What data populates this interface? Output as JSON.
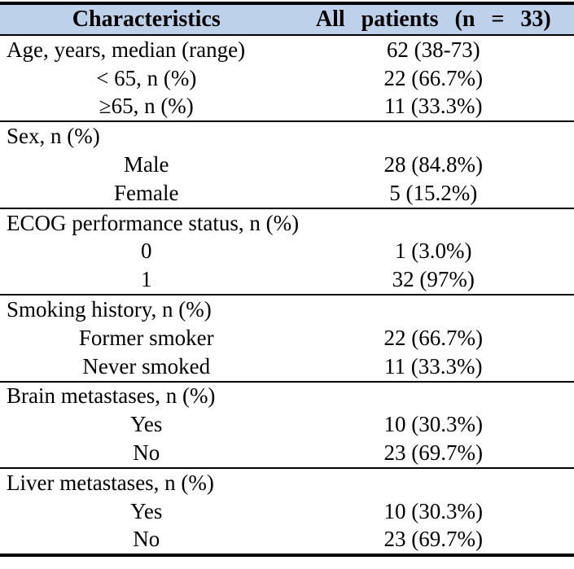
{
  "table": {
    "header": {
      "col1": "Characteristics",
      "col2": "All patients (n = 33)"
    },
    "header_bg": "#BDD1EA",
    "border_color": "#000000",
    "sections": [
      {
        "rows": [
          {
            "label": "Age, years, median (range)",
            "value": "62 (38-73)",
            "indent": false
          },
          {
            "label": "< 65, n (%)",
            "value": "22 (66.7%)",
            "indent": true
          },
          {
            "label": "≥65, n (%)",
            "value": "11 (33.3%)",
            "indent": true
          }
        ]
      },
      {
        "rows": [
          {
            "label": "Sex, n (%)",
            "value": "",
            "indent": false
          },
          {
            "label": "Male",
            "value": "28 (84.8%)",
            "indent": true
          },
          {
            "label": "Female",
            "value": "5 (15.2%)",
            "indent": true
          }
        ]
      },
      {
        "rows": [
          {
            "label": "ECOG performance status, n (%)",
            "value": "",
            "indent": false
          },
          {
            "label": "0",
            "value": "1 (3.0%)",
            "indent": true
          },
          {
            "label": "1",
            "value": "32 (97%)",
            "indent": true
          }
        ]
      },
      {
        "rows": [
          {
            "label": "Smoking history, n (%)",
            "value": "",
            "indent": false
          },
          {
            "label": "Former smoker",
            "value": "22 (66.7%)",
            "indent": true
          },
          {
            "label": "Never smoked",
            "value": "11 (33.3%)",
            "indent": true
          }
        ]
      },
      {
        "rows": [
          {
            "label": "Brain metastases, n (%)",
            "value": "",
            "indent": false
          },
          {
            "label": "Yes",
            "value": "10 (30.3%)",
            "indent": true
          },
          {
            "label": "No",
            "value": "23 (69.7%)",
            "indent": true
          }
        ]
      },
      {
        "rows": [
          {
            "label": "Liver metastases, n (%)",
            "value": "",
            "indent": false
          },
          {
            "label": "Yes",
            "value": "10 (30.3%)",
            "indent": true
          },
          {
            "label": "No",
            "value": "23 (69.7%)",
            "indent": true
          }
        ]
      }
    ]
  }
}
